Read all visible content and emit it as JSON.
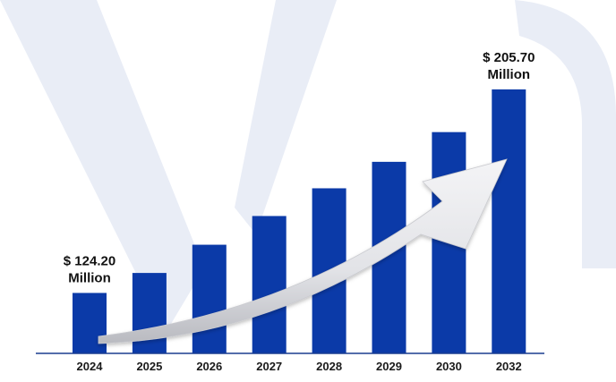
{
  "colors": {
    "bar": "#0b3aa8",
    "axis": "#1a3d8f",
    "watermark": "#e9edf6",
    "arrow_light": "#f4f4f6",
    "arrow_dark": "#b9bac0"
  },
  "chart_data": {
    "type": "bar",
    "categories": [
      "2024",
      "2025",
      "2026",
      "2027",
      "2028",
      "2029",
      "2030",
      "2032"
    ],
    "values": [
      124.2,
      132.2,
      143.5,
      155.0,
      166.1,
      176.7,
      188.6,
      205.7
    ],
    "ylim": [
      100,
      220
    ],
    "grid": false,
    "legend": "none",
    "annotations": [
      {
        "index": 0,
        "lines": [
          "$ 124.20",
          "Million"
        ]
      },
      {
        "index": 7,
        "lines": [
          "$ 205.70",
          "Million"
        ]
      }
    ],
    "trend_arrow": "upward curved arrow from 2024 to 2032"
  }
}
